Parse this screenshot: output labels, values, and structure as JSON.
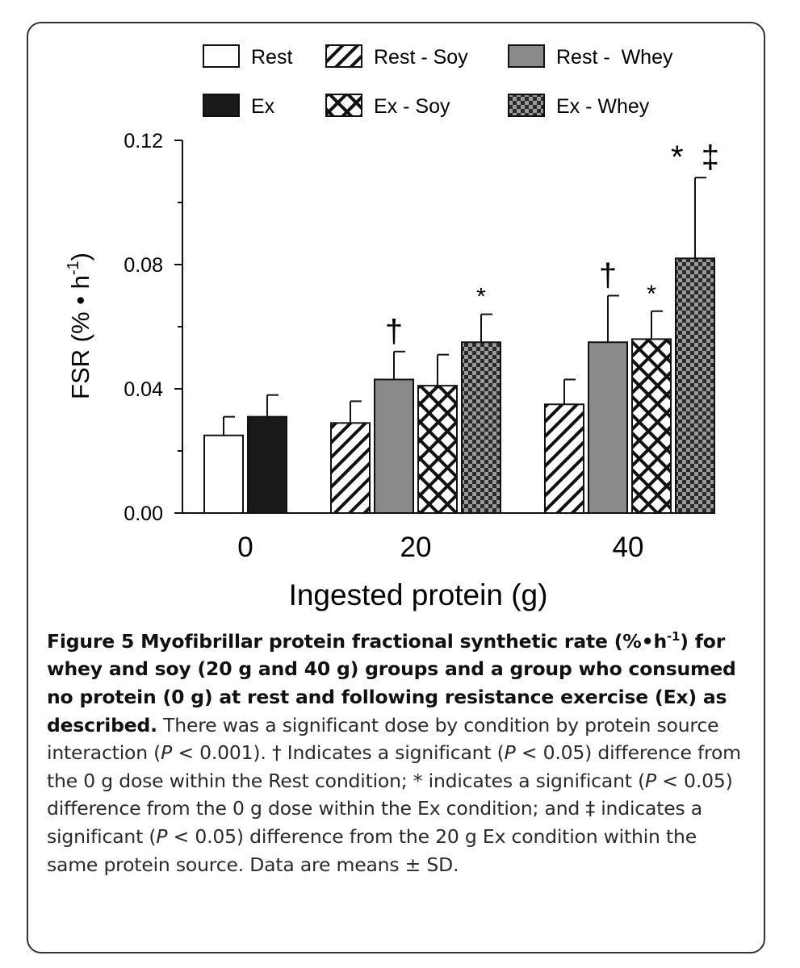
{
  "chart_data": {
    "type": "bar",
    "title": "",
    "xlabel": "Ingested protein (g)",
    "ylabel": "FSR (% • h",
    "ylabel_sup": "-1",
    "ylabel_close": ")",
    "ylim": [
      0,
      0.12
    ],
    "yticks": [
      0.0,
      0.04,
      0.08,
      0.12
    ],
    "ytick_labels": [
      "0.00",
      "0.04",
      "0.08",
      "0.12"
    ],
    "legend_position": "top",
    "groups": [
      "0",
      "20",
      "40"
    ],
    "series": [
      {
        "name": "Rest",
        "pattern": "white"
      },
      {
        "name": "Rest - Soy",
        "pattern": "diagonal-hatch"
      },
      {
        "name": "Rest -  Whey",
        "pattern": "gray"
      },
      {
        "name": "Ex",
        "pattern": "black"
      },
      {
        "name": "Ex - Soy",
        "pattern": "crosshatch"
      },
      {
        "name": "Ex - Whey",
        "pattern": "checker"
      }
    ],
    "bars": [
      {
        "group": "0",
        "series": "Rest",
        "value": 0.025,
        "sd": 0.006,
        "mark": ""
      },
      {
        "group": "0",
        "series": "Ex",
        "value": 0.031,
        "sd": 0.007,
        "mark": ""
      },
      {
        "group": "20",
        "series": "Rest - Soy",
        "value": 0.029,
        "sd": 0.007,
        "mark": ""
      },
      {
        "group": "20",
        "series": "Rest -  Whey",
        "value": 0.043,
        "sd": 0.009,
        "mark": "†"
      },
      {
        "group": "20",
        "series": "Ex - Soy",
        "value": 0.041,
        "sd": 0.01,
        "mark": ""
      },
      {
        "group": "20",
        "series": "Ex - Whey",
        "value": 0.055,
        "sd": 0.009,
        "mark": "*"
      },
      {
        "group": "40",
        "series": "Rest - Soy",
        "value": 0.035,
        "sd": 0.008,
        "mark": ""
      },
      {
        "group": "40",
        "series": "Rest -  Whey",
        "value": 0.055,
        "sd": 0.015,
        "mark": "†"
      },
      {
        "group": "40",
        "series": "Ex - Soy",
        "value": 0.056,
        "sd": 0.009,
        "mark": "*"
      },
      {
        "group": "40",
        "series": "Ex - Whey",
        "value": 0.082,
        "sd": 0.026,
        "mark": "*  ‡"
      }
    ],
    "colors": {
      "gray": "#8a8a8a",
      "black": "#1a1a1a",
      "checker_dark": "#2a2a2a",
      "checker_light": "#9a9a9a"
    }
  },
  "caption": {
    "label": "Figure 5",
    "bold_title": "Myofibrillar protein fractional synthetic rate (%•h",
    "bold_title_sup": "-1",
    "bold_title_rest": ") for whey and soy (20 g and 40 g) groups and a group who consumed no protein (0 g) at rest and following resistance exercise (Ex) as described.",
    "s1": " There was a significant dose by condition by protein source interaction (",
    "p": "P",
    "s2": " < 0.001). † Indicates a significant (",
    "s3": " < 0.05) difference from the 0 g dose within the Rest condition; * indicates a significant (",
    "s4": " < 0.05) difference from the 0 g dose within the Ex condition; and ‡ indicates a significant (",
    "s5": " < 0.05) difference from the 20 g Ex condition within the same protein source. Data are means ± SD."
  }
}
